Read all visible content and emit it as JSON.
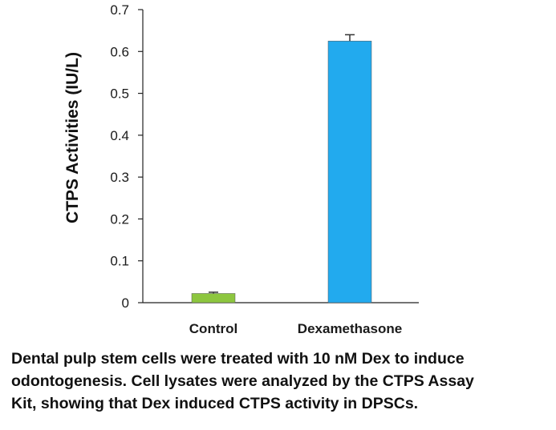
{
  "chart_data": {
    "type": "bar",
    "categories": [
      "Control",
      "Dexamethasone"
    ],
    "values": [
      0.022,
      0.625
    ],
    "errors": [
      0.003,
      0.015
    ],
    "colors": [
      "#8dc63f",
      "#22aaee"
    ],
    "ylabel": "CTPS Activities (IU/L)",
    "xlabel": "",
    "ylim": [
      0,
      0.7
    ],
    "yticks": [
      0,
      0.1,
      0.2,
      0.3,
      0.4,
      0.5,
      0.6,
      0.7
    ],
    "ytick_labels": [
      "0",
      "0.1",
      "0.2",
      "0.3",
      "0.4",
      "0.5",
      "0.6",
      "0.7"
    ],
    "grid": false,
    "legend": false
  },
  "caption": {
    "lines": [
      "Dental pulp stem cells were treated with 10 nM Dex to induce",
      "odontogenesis. Cell lysates were analyzed by the CTPS Assay",
      "Kit, showing that Dex induced CTPS activity in DPSCs."
    ]
  }
}
